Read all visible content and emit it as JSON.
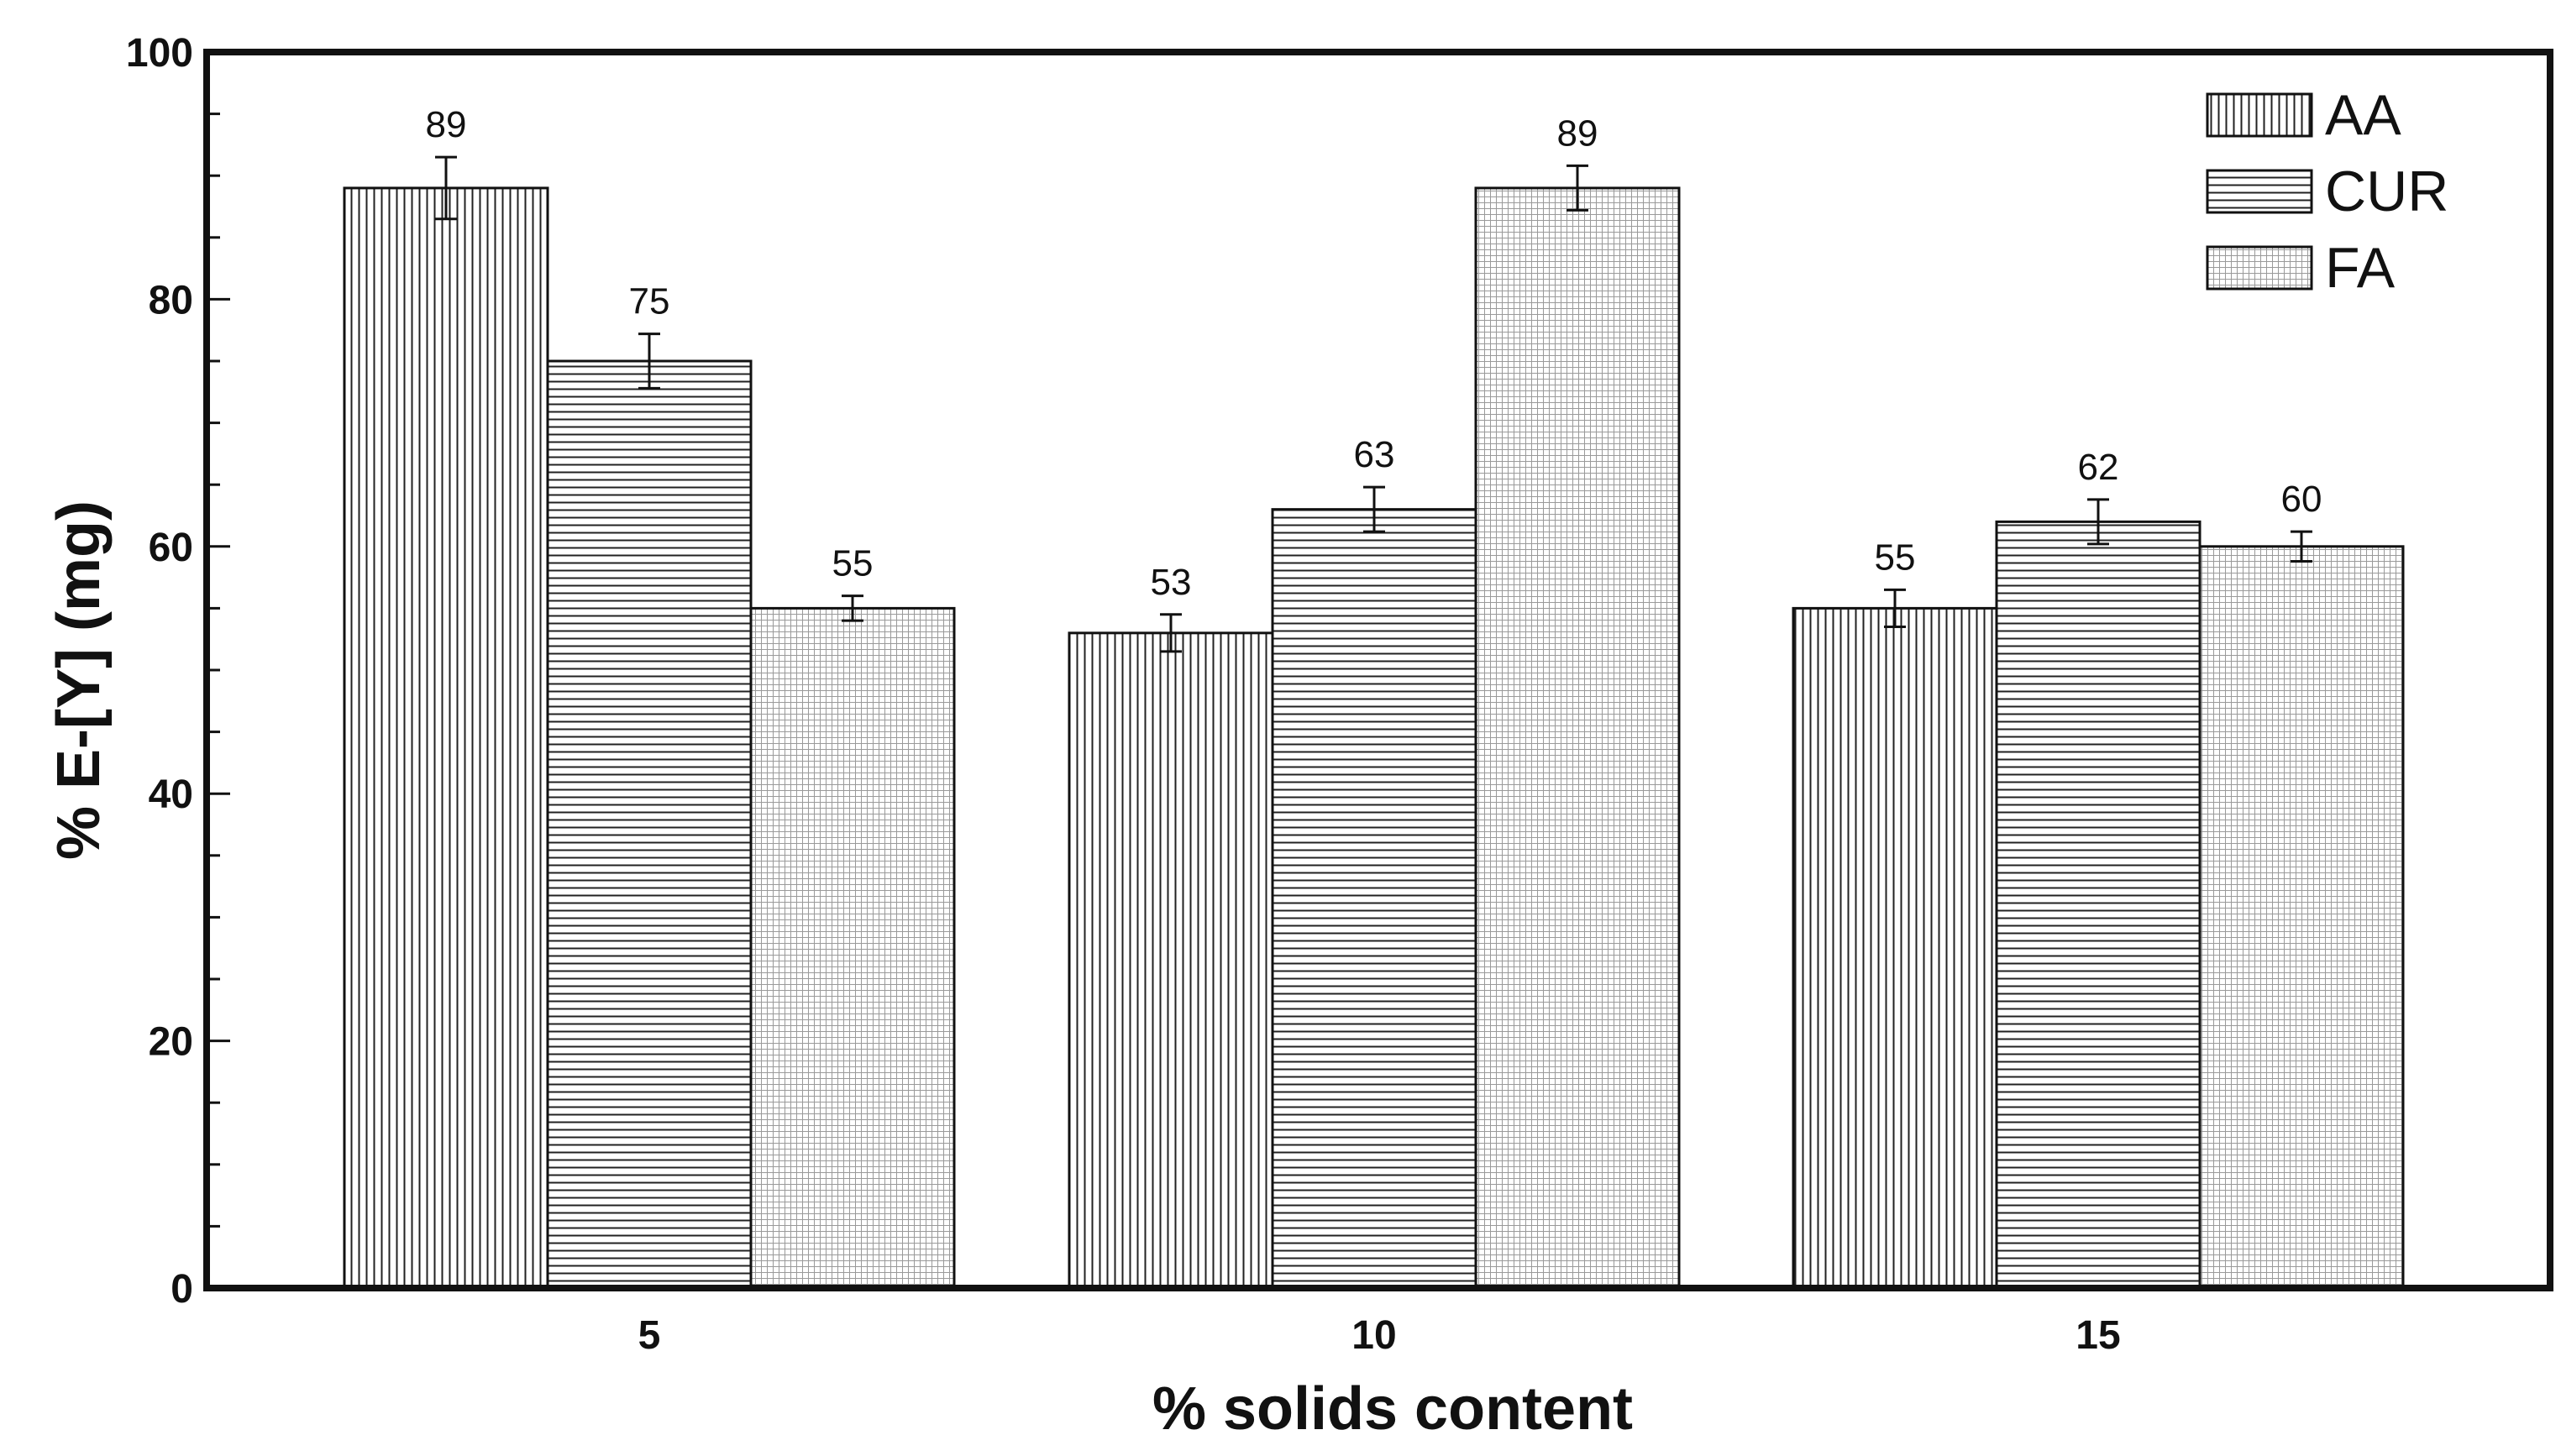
{
  "chart_data": {
    "type": "bar",
    "xlabel": "% solids content",
    "ylabel": "% E-[Y] (mg)",
    "categories": [
      "5",
      "10",
      "15"
    ],
    "ylim": [
      0,
      100
    ],
    "yticks": [
      "0",
      "20",
      "40",
      "60",
      "80",
      "100"
    ],
    "series": [
      {
        "name": "AA",
        "pattern": "vertical-lines",
        "values": [
          89,
          53,
          55
        ],
        "labels": [
          "89",
          "53",
          "55"
        ],
        "errors": [
          2.5,
          1.5,
          1.5
        ]
      },
      {
        "name": "CUR",
        "pattern": "horizontal-lines",
        "values": [
          75,
          63,
          62
        ],
        "labels": [
          "75",
          "63",
          "62"
        ],
        "errors": [
          2.2,
          1.8,
          1.8
        ]
      },
      {
        "name": "FA",
        "pattern": "fine-grid",
        "values": [
          55,
          89,
          60
        ],
        "labels": [
          "55",
          "89",
          "60"
        ],
        "errors": [
          1.0,
          1.8,
          1.2
        ]
      }
    ],
    "legend_position": "top-right",
    "bar_fill": "#ffffff",
    "line_color": "#111111"
  }
}
